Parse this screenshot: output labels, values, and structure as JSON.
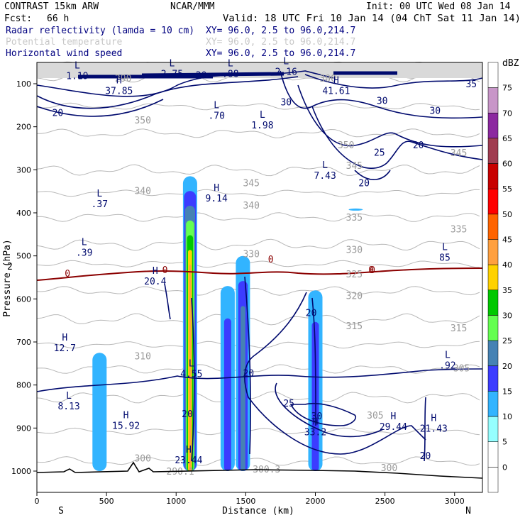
{
  "header": {
    "model": "CONTRAST 15km ARW",
    "center": "NCAR/MMM",
    "init": "Init: 00 UTC Wed 08 Jan 14",
    "fcst_label": "Fcst:",
    "fcst_value": "66 h",
    "valid": "Valid: 18 UTC Fri 10 Jan 14 (04 ChT Sat 11 Jan 14)"
  },
  "fields": [
    {
      "name": "Radar reflectivity (lamda = 10 cm)",
      "xy": "XY=  96.0,  2.5 to  96.0,214.7",
      "color": "#000080"
    },
    {
      "name": "Potential temperature",
      "xy": "XY=  96.0,  2.5 to  96.0,214.7",
      "color": "#c8c8c8"
    },
    {
      "name": "Horizontal wind speed",
      "xy": "XY=  96.0,  2.5 to  96.0,214.7",
      "color": "#000080"
    }
  ],
  "chart_data": {
    "type": "cross-section",
    "xlabel": "Distance (km)",
    "ylabel": "Pressure (hPa)",
    "xlim": [
      0,
      3200
    ],
    "ylim": [
      1050,
      65
    ],
    "x_ticks": [
      0,
      500,
      1000,
      1500,
      2000,
      2500,
      3000
    ],
    "y_ticks": [
      100,
      200,
      300,
      400,
      500,
      600,
      700,
      800,
      900,
      1000
    ],
    "x_end_labels": {
      "left": "S",
      "right": "N"
    },
    "colorbar": {
      "unit": "dBZ",
      "levels": [
        0,
        5,
        10,
        15,
        20,
        25,
        30,
        35,
        40,
        45,
        50,
        55,
        60,
        65,
        70,
        75
      ],
      "colors": [
        "#ffffff",
        "#ffffff",
        "#96ffff",
        "#32b4ff",
        "#3c3cff",
        "#4682b4",
        "#64ff50",
        "#00c800",
        "#ffd200",
        "#ffa040",
        "#ff6400",
        "#ff0000",
        "#c80000",
        "#a03c50",
        "#8c28a0",
        "#c896c8",
        "#ffffff"
      ]
    },
    "reflectivity_cells": [
      {
        "x": 450,
        "p_top": 725,
        "p_bot": 1000,
        "max_dbz": 10
      },
      {
        "x": 1100,
        "p_top": 315,
        "p_bot": 1000,
        "max_dbz": 40
      },
      {
        "x": 1370,
        "p_top": 570,
        "p_bot": 1000,
        "max_dbz": 15
      },
      {
        "x": 1480,
        "p_top": 500,
        "p_bot": 1000,
        "max_dbz": 20
      },
      {
        "x": 2000,
        "p_top": 580,
        "p_bot": 1000,
        "max_dbz": 15
      },
      {
        "x": 2290,
        "p_top": 390,
        "p_bot": 395,
        "max_dbz": 10
      }
    ],
    "theta_labels": [
      {
        "text": "350",
        "x": 760,
        "p": 192
      },
      {
        "text": "350",
        "x": 2220,
        "p": 250
      },
      {
        "text": "345",
        "x": 1540,
        "p": 338
      },
      {
        "text": "345",
        "x": 2280,
        "p": 298
      },
      {
        "text": "345",
        "x": 3030,
        "p": 268
      },
      {
        "text": "340",
        "x": 760,
        "p": 356
      },
      {
        "text": "340",
        "x": 1540,
        "p": 390
      },
      {
        "text": "335",
        "x": 2280,
        "p": 418
      },
      {
        "text": "335",
        "x": 3030,
        "p": 445
      },
      {
        "text": "330",
        "x": 1540,
        "p": 503
      },
      {
        "text": "330",
        "x": 2280,
        "p": 493
      },
      {
        "text": "325",
        "x": 2280,
        "p": 550
      },
      {
        "text": "320",
        "x": 2280,
        "p": 600
      },
      {
        "text": "315",
        "x": 2280,
        "p": 670
      },
      {
        "text": "315",
        "x": 3030,
        "p": 675
      },
      {
        "text": "310",
        "x": 760,
        "p": 740
      },
      {
        "text": "305",
        "x": 2430,
        "p": 878
      },
      {
        "text": "305",
        "x": 3050,
        "p": 768
      },
      {
        "text": "300",
        "x": 760,
        "p": 978
      },
      {
        "text": "300",
        "x": 2530,
        "p": 1000
      },
      {
        "text": "290.1",
        "x": 1030,
        "p": 1008
      },
      {
        "text": "300.3",
        "x": 1650,
        "p": 1003
      },
      {
        "text": "290",
        "x": 620,
        "p": 95
      },
      {
        "text": "300",
        "x": 2090,
        "p": 95
      }
    ],
    "wind_labels": [
      {
        "text": "20",
        "x": 150,
        "p": 175
      },
      {
        "text": "20",
        "x": 1180,
        "p": 88
      },
      {
        "text": "30",
        "x": 1790,
        "p": 150
      },
      {
        "text": "30",
        "x": 2480,
        "p": 147
      },
      {
        "text": "30",
        "x": 2860,
        "p": 170
      },
      {
        "text": "35",
        "x": 3120,
        "p": 108
      },
      {
        "text": "25",
        "x": 2460,
        "p": 267
      },
      {
        "text": "20",
        "x": 2740,
        "p": 250
      },
      {
        "text": "20",
        "x": 2350,
        "p": 338
      },
      {
        "text": "20",
        "x": 1970,
        "p": 640
      },
      {
        "text": "20",
        "x": 1520,
        "p": 780
      },
      {
        "text": "20",
        "x": 1080,
        "p": 875
      },
      {
        "text": "25",
        "x": 1810,
        "p": 850
      },
      {
        "text": "30",
        "x": 2010,
        "p": 880
      },
      {
        "text": "20",
        "x": 2790,
        "p": 972
      },
      {
        "text": "0",
        "x": 220,
        "p": 548
      },
      {
        "text": "0",
        "x": 920,
        "p": 540
      },
      {
        "text": "0",
        "x": 1680,
        "p": 515
      },
      {
        "text": "0",
        "x": 2410,
        "p": 540
      },
      {
        "text": "0",
        "x": 2400,
        "p": 540
      }
    ],
    "extrema": [
      {
        "type": "L",
        "value": "1.19",
        "x": 290,
        "p": 78
      },
      {
        "type": "H",
        "value": "37.85",
        "x": 590,
        "p": 112
      },
      {
        "type": "L",
        "value": "2.75",
        "x": 970,
        "p": 73
      },
      {
        "type": "L",
        "value": ".88",
        "x": 1390,
        "p": 73
      },
      {
        "type": "L",
        "value": "2.16",
        "x": 1790,
        "p": 68
      },
      {
        "type": "H",
        "value": "41.61",
        "x": 2150,
        "p": 112
      },
      {
        "type": "L",
        "value": ".70",
        "x": 1290,
        "p": 170
      },
      {
        "type": "L",
        "value": "1.98",
        "x": 1620,
        "p": 192
      },
      {
        "type": "L",
        "value": "7.43",
        "x": 2070,
        "p": 309
      },
      {
        "type": "H",
        "value": "9.14",
        "x": 1290,
        "p": 362
      },
      {
        "type": "L",
        "value": ".37",
        "x": 450,
        "p": 375
      },
      {
        "type": "L",
        "value": ".39",
        "x": 340,
        "p": 488
      },
      {
        "type": "H",
        "value": "20.4",
        "x": 850,
        "p": 555
      },
      {
        "type": "L",
        "value": "85",
        "x": 2930,
        "p": 500
      },
      {
        "type": "H",
        "value": "12.7",
        "x": 200,
        "p": 710
      },
      {
        "type": "L",
        "value": "4.55",
        "x": 1110,
        "p": 770
      },
      {
        "type": "H",
        "value": "15.92",
        "x": 640,
        "p": 890
      },
      {
        "type": "L",
        "value": "8.13",
        "x": 230,
        "p": 845
      },
      {
        "type": "H",
        "value": "23.44",
        "x": 1090,
        "p": 970
      },
      {
        "type": "H",
        "value": "33.2",
        "x": 2000,
        "p": 905
      },
      {
        "type": "H",
        "value": "29.44",
        "x": 2560,
        "p": 893
      },
      {
        "type": "H",
        "value": "21.43",
        "x": 2850,
        "p": 897
      },
      {
        "type": "L",
        "value": ".92",
        "x": 2950,
        "p": 750
      }
    ],
    "left_edge_label": "2"
  }
}
